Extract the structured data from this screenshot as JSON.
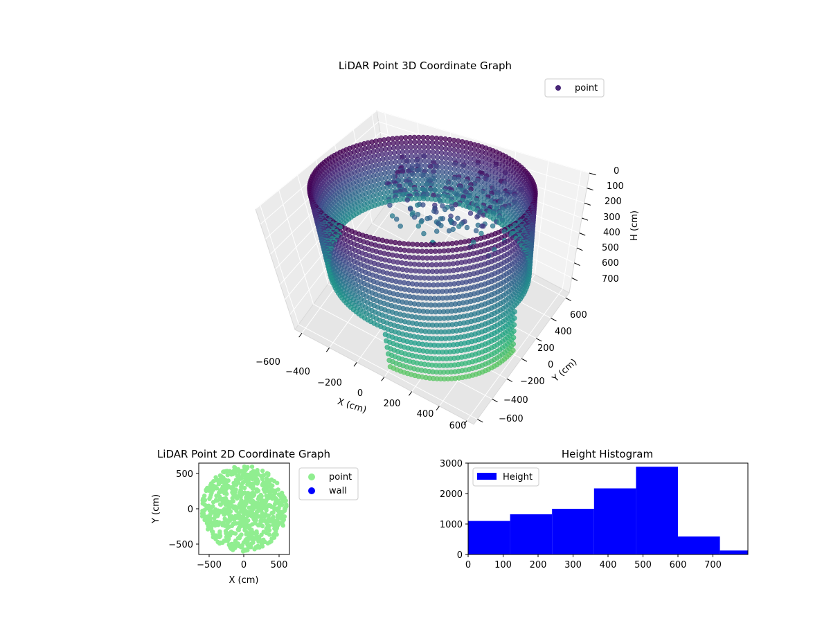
{
  "chart_data": [
    {
      "type": "scatter3d",
      "title": "LiDAR Point 3D Coordinate Graph",
      "xlabel": "X (cm)",
      "ylabel": "Y (cm)",
      "zlabel": "H (cm)",
      "xlim": [
        -650,
        650
      ],
      "ylim": [
        -650,
        650
      ],
      "zlim": [
        800,
        0
      ],
      "x_ticks": [
        "−600",
        "−400",
        "−200",
        "0",
        "200",
        "400",
        "600"
      ],
      "y_ticks": [
        "−600",
        "−400",
        "−200",
        "0",
        "200",
        "400",
        "600"
      ],
      "z_ticks": [
        "0",
        "100",
        "200",
        "300",
        "400",
        "500",
        "600",
        "700"
      ],
      "legend": [
        "point"
      ],
      "legend_position": "top-right",
      "grid": true,
      "colormap": "viridis",
      "series": [
        {
          "name": "point",
          "color": "#3b2a72",
          "shape": "cylindrical wall, radius approx 600 cm, height range 0-800 cm, with interior scattered clusters"
        }
      ]
    },
    {
      "type": "scatter",
      "title": "LiDAR Point 2D Coordinate Graph",
      "xlabel": "X (cm)",
      "ylabel": "Y (cm)",
      "xlim": [
        -650,
        650
      ],
      "ylim": [
        -650,
        650
      ],
      "x_ticks": [
        "−500",
        "0",
        "500"
      ],
      "y_ticks": [
        "500",
        "0",
        "−500"
      ],
      "legend": [
        "point",
        "wall"
      ],
      "legend_position": "outside-right",
      "series": [
        {
          "name": "point",
          "color": "#90ee90",
          "shape": "filled disc, radius approx 600 cm"
        },
        {
          "name": "wall",
          "color": "#0000ff"
        }
      ]
    },
    {
      "type": "bar",
      "title": "Height Histogram",
      "xlabel": "",
      "ylabel": "",
      "xlim": [
        0,
        800
      ],
      "ylim": [
        0,
        3000
      ],
      "x_ticks": [
        "0",
        "100",
        "200",
        "300",
        "400",
        "500",
        "600",
        "700"
      ],
      "y_ticks": [
        "0",
        "1000",
        "2000",
        "3000"
      ],
      "legend": [
        "Height"
      ],
      "legend_position": "top-left",
      "series": [
        {
          "name": "Height",
          "color": "#0000ff",
          "bin_edges": [
            0,
            120,
            240,
            360,
            480,
            600,
            720,
            800
          ],
          "values": [
            1100,
            1320,
            1500,
            2170,
            2880,
            590,
            130
          ]
        }
      ]
    }
  ]
}
